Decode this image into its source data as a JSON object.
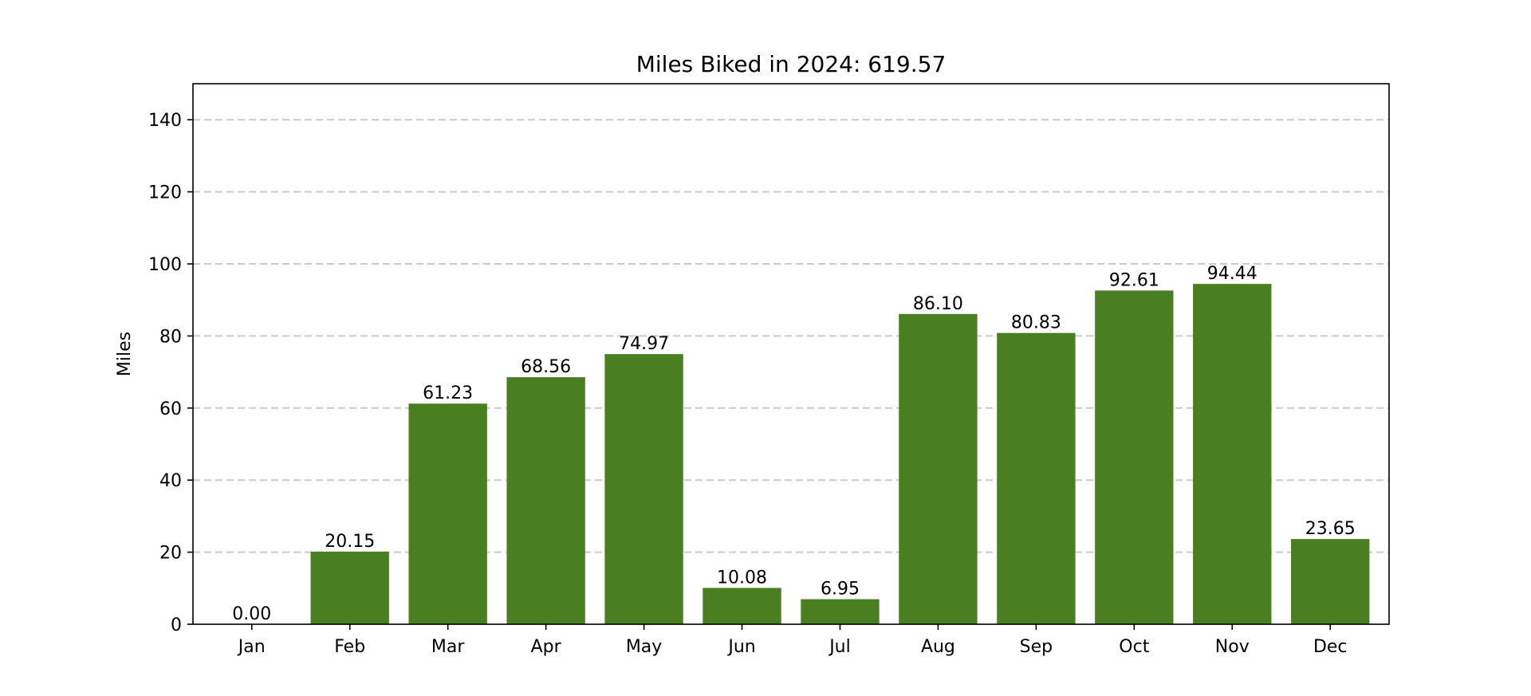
{
  "chart_data": {
    "type": "bar",
    "title": "Miles Biked in 2024: 619.57",
    "xlabel": "",
    "ylabel": "Miles",
    "categories": [
      "Jan",
      "Feb",
      "Mar",
      "Apr",
      "May",
      "Jun",
      "Jul",
      "Aug",
      "Sep",
      "Oct",
      "Nov",
      "Dec"
    ],
    "values": [
      0.0,
      20.15,
      61.23,
      68.56,
      74.97,
      10.08,
      6.95,
      86.1,
      80.83,
      92.61,
      94.44,
      23.65
    ],
    "value_labels": [
      "0.00",
      "20.15",
      "61.23",
      "68.56",
      "74.97",
      "10.08",
      "6.95",
      "86.10",
      "80.83",
      "92.61",
      "94.44",
      "23.65"
    ],
    "ylim": [
      0,
      150
    ],
    "yticks": [
      0,
      20,
      40,
      60,
      80,
      100,
      120,
      140
    ],
    "grid": "y-dashed",
    "bar_color": "#4a7f21"
  }
}
